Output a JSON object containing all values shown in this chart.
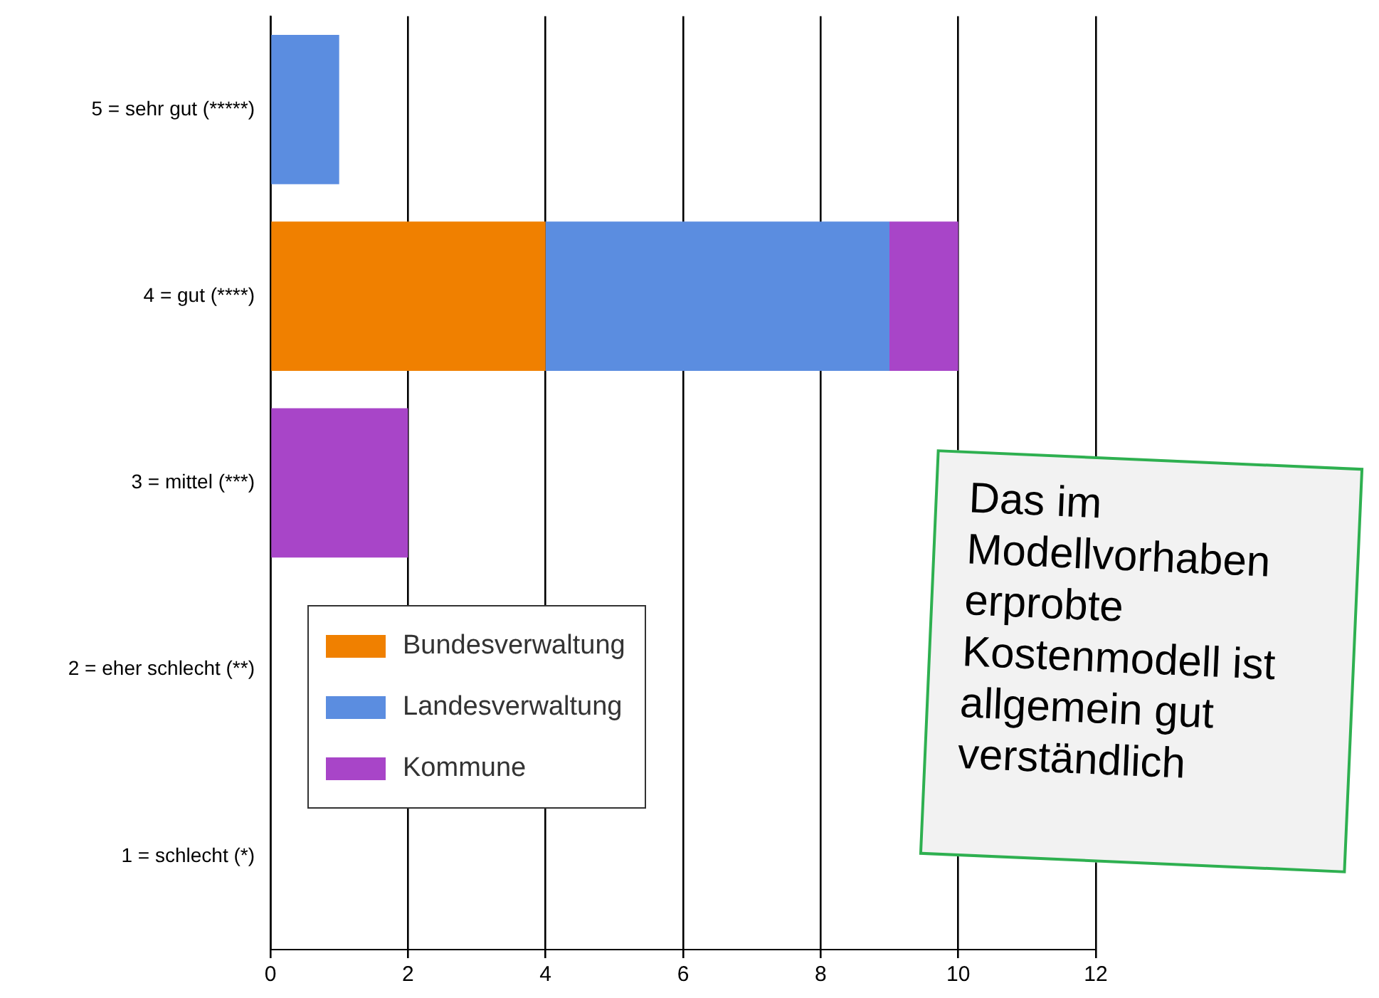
{
  "chart_data": {
    "type": "bar",
    "orientation": "horizontal",
    "stacked": true,
    "categories": [
      "5 = sehr gut (*****)",
      "4 = gut (****)",
      "3 = mittel (***)",
      "2 = eher schlecht (**)",
      "1 = schlecht (*)"
    ],
    "series": [
      {
        "name": "Bundesverwaltung",
        "color": "#f08000",
        "values": [
          0,
          4,
          0,
          0,
          0
        ]
      },
      {
        "name": "Landesverwaltung",
        "color": "#5b8de0",
        "values": [
          1,
          5,
          0,
          0,
          0
        ]
      },
      {
        "name": "Kommune",
        "color": "#a845c8",
        "values": [
          0,
          1,
          2,
          0,
          0
        ]
      }
    ],
    "xlim": [
      0,
      12
    ],
    "xticks": [
      0,
      2,
      4,
      6,
      8,
      10,
      12
    ],
    "grid": "x",
    "legend": "bottom left",
    "annotations": [
      "Das im Modellvorhaben erprobte Kostenmodell ist allgemein gut verständlich"
    ]
  }
}
